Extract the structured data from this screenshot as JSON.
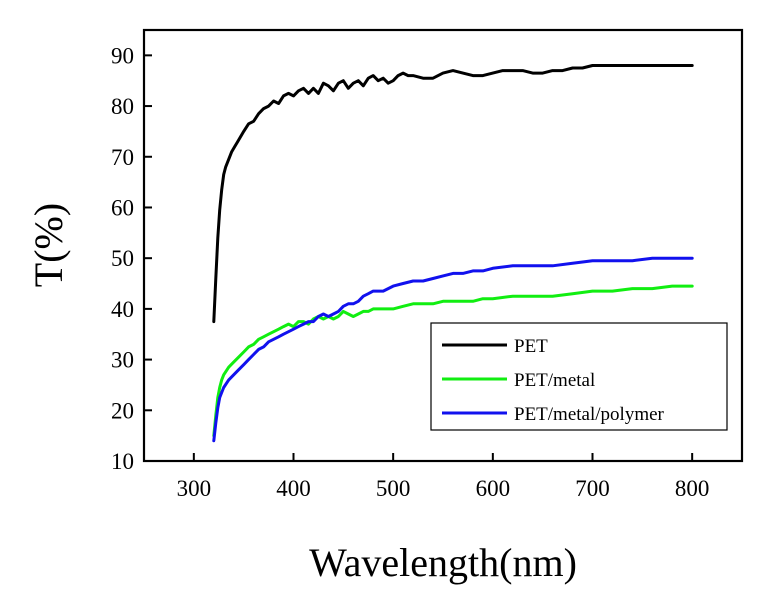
{
  "chart_data": {
    "type": "line",
    "title": "",
    "xlabel": "Wavelength(nm)",
    "ylabel": "T(%)",
    "xlim": [
      250,
      850
    ],
    "ylim": [
      10,
      95
    ],
    "xticks": [
      300,
      400,
      500,
      600,
      700,
      800
    ],
    "yticks": [
      10,
      20,
      30,
      40,
      50,
      60,
      70,
      80,
      90
    ],
    "grid": false,
    "legend_position": "bottom-right",
    "series": [
      {
        "name": "PET",
        "color": "#000000",
        "x": [
          320,
          322,
          324,
          326,
          328,
          330,
          332,
          335,
          338,
          341,
          344,
          347,
          350,
          355,
          360,
          365,
          370,
          375,
          380,
          385,
          390,
          395,
          400,
          405,
          410,
          415,
          420,
          425,
          430,
          435,
          440,
          445,
          450,
          455,
          460,
          465,
          470,
          475,
          480,
          485,
          490,
          495,
          500,
          505,
          510,
          515,
          520,
          530,
          540,
          550,
          560,
          570,
          580,
          590,
          600,
          610,
          620,
          630,
          640,
          650,
          660,
          670,
          680,
          690,
          700,
          720,
          740,
          760,
          780,
          800
        ],
        "y": [
          37.5,
          46.0,
          54.0,
          59.5,
          63.5,
          66.5,
          68.0,
          69.5,
          71.0,
          72.0,
          73.0,
          74.0,
          75.0,
          76.5,
          77.0,
          78.5,
          79.5,
          80.0,
          81.0,
          80.5,
          82.0,
          82.5,
          82.0,
          83.0,
          83.5,
          82.5,
          83.5,
          82.5,
          84.5,
          84.0,
          83.0,
          84.5,
          85.0,
          83.5,
          84.5,
          85.0,
          84.0,
          85.5,
          86.0,
          85.0,
          85.5,
          84.5,
          85.0,
          86.0,
          86.5,
          86.0,
          86.0,
          85.5,
          85.5,
          86.5,
          87.0,
          86.5,
          86.0,
          86.0,
          86.5,
          87.0,
          87.0,
          87.0,
          86.5,
          86.5,
          87.0,
          87.0,
          87.5,
          87.5,
          88.0,
          88.0,
          88.0,
          88.0,
          88.0,
          88.0
        ]
      },
      {
        "name": "PET/metal",
        "color": "#11ee11",
        "x": [
          320,
          322,
          324,
          326,
          328,
          330,
          335,
          340,
          345,
          350,
          355,
          360,
          365,
          370,
          375,
          380,
          385,
          390,
          395,
          400,
          405,
          410,
          415,
          420,
          425,
          430,
          435,
          440,
          445,
          450,
          455,
          460,
          465,
          470,
          475,
          480,
          490,
          500,
          510,
          520,
          530,
          540,
          550,
          560,
          570,
          580,
          590,
          600,
          620,
          640,
          660,
          680,
          700,
          720,
          740,
          760,
          780,
          800
        ],
        "y": [
          15.0,
          19.0,
          22.5,
          24.5,
          26.0,
          27.0,
          28.5,
          29.5,
          30.5,
          31.5,
          32.5,
          33.0,
          34.0,
          34.5,
          35.0,
          35.5,
          36.0,
          36.5,
          37.0,
          36.5,
          37.5,
          37.5,
          37.0,
          38.0,
          38.5,
          38.0,
          38.5,
          38.0,
          38.5,
          39.5,
          39.0,
          38.5,
          39.0,
          39.5,
          39.5,
          40.0,
          40.0,
          40.0,
          40.5,
          41.0,
          41.0,
          41.0,
          41.5,
          41.5,
          41.5,
          41.5,
          42.0,
          42.0,
          42.5,
          42.5,
          42.5,
          43.0,
          43.5,
          43.5,
          44.0,
          44.0,
          44.5,
          44.5
        ]
      },
      {
        "name": "PET/metal/polymer",
        "color": "#1111ee",
        "x": [
          320,
          322,
          324,
          326,
          328,
          330,
          335,
          340,
          345,
          350,
          355,
          360,
          365,
          370,
          375,
          380,
          385,
          390,
          395,
          400,
          405,
          410,
          415,
          420,
          425,
          430,
          435,
          440,
          445,
          450,
          455,
          460,
          465,
          470,
          475,
          480,
          490,
          500,
          510,
          520,
          530,
          540,
          550,
          560,
          570,
          580,
          590,
          600,
          620,
          640,
          660,
          680,
          700,
          720,
          740,
          760,
          780,
          800
        ],
        "y": [
          14.0,
          17.5,
          20.5,
          22.5,
          23.5,
          24.5,
          26.0,
          27.0,
          28.0,
          29.0,
          30.0,
          31.0,
          32.0,
          32.5,
          33.5,
          34.0,
          34.5,
          35.0,
          35.5,
          36.0,
          36.5,
          37.0,
          37.5,
          37.5,
          38.5,
          39.0,
          38.5,
          39.0,
          39.5,
          40.5,
          41.0,
          41.0,
          41.5,
          42.5,
          43.0,
          43.5,
          43.5,
          44.5,
          45.0,
          45.5,
          45.5,
          46.0,
          46.5,
          47.0,
          47.0,
          47.5,
          47.5,
          48.0,
          48.5,
          48.5,
          48.5,
          49.0,
          49.5,
          49.5,
          49.5,
          50.0,
          50.0,
          50.0
        ]
      }
    ]
  }
}
